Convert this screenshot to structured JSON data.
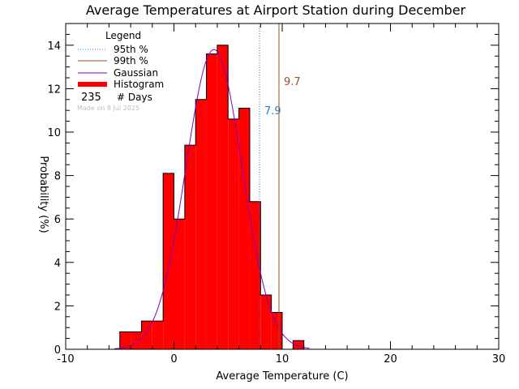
{
  "chart_data": {
    "type": "bar",
    "title": "Average Temperatures at Airport Station during December",
    "xlabel": "Average Temperature (C)",
    "ylabel": "Probability (%)",
    "xlim": [
      -10,
      30
    ],
    "ylim": [
      0,
      15
    ],
    "x_ticks": [
      -10,
      0,
      10,
      20,
      30
    ],
    "y_ticks": [
      0,
      2,
      4,
      6,
      8,
      10,
      12,
      14
    ],
    "bin_width": 1,
    "histogram": {
      "name": "Histogram",
      "color": "#ff0000",
      "bins": [
        {
          "x0": -5,
          "value": 0.8
        },
        {
          "x0": -4,
          "value": 0.8
        },
        {
          "x0": -3,
          "value": 1.3
        },
        {
          "x0": -2,
          "value": 1.3
        },
        {
          "x0": -1,
          "value": 8.1
        },
        {
          "x0": 0,
          "value": 6.0
        },
        {
          "x0": 1,
          "value": 9.4
        },
        {
          "x0": 2,
          "value": 11.5
        },
        {
          "x0": 3,
          "value": 13.6
        },
        {
          "x0": 4,
          "value": 14.0
        },
        {
          "x0": 5,
          "value": 10.6
        },
        {
          "x0": 6,
          "value": 11.1
        },
        {
          "x0": 7,
          "value": 6.8
        },
        {
          "x0": 8,
          "value": 2.5
        },
        {
          "x0": 9,
          "value": 1.7
        },
        {
          "x0": 10,
          "value": 0.0
        },
        {
          "x0": 11,
          "value": 0.4
        }
      ]
    },
    "gaussian": {
      "name": "Gaussian",
      "color": "#8000c0",
      "mean": 3.7,
      "sigma": 2.6,
      "peak": 13.8,
      "x_range": [
        -5.5,
        12.5
      ]
    },
    "percentile_lines": [
      {
        "name": "95th %",
        "value": 7.9,
        "label": "7.9",
        "color": "#1f7fd0",
        "style": "dotted"
      },
      {
        "name": "99th %",
        "value": 9.7,
        "label": "9.7",
        "color": "#a05020",
        "style": "solid"
      }
    ],
    "legend": {
      "title": "Legend",
      "placement": "top-left",
      "days_count": "235",
      "days_label": "# Days"
    },
    "made_note": "Made on 8 Jul 2025"
  }
}
